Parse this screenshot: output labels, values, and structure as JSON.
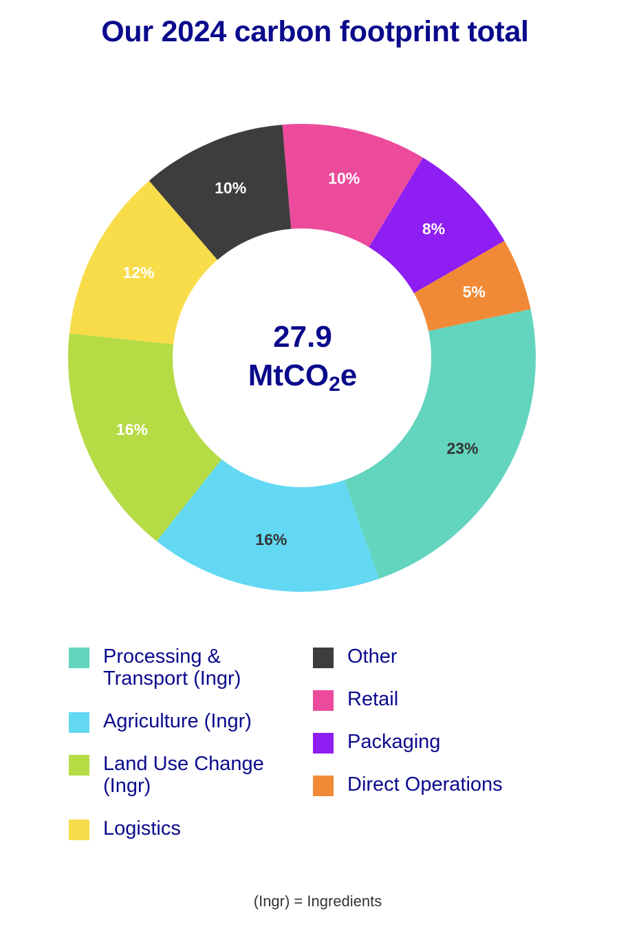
{
  "title": "Our 2024 carbon footprint total",
  "center": {
    "value": "27.9",
    "unit_prefix": "MtCO",
    "unit_sub": "2",
    "unit_suffix": "e"
  },
  "chart_data": {
    "type": "pie",
    "donut": true,
    "title": "Our 2024 carbon footprint total",
    "total": "27.9 MtCO2e",
    "slices": [
      {
        "name": "Processing & Transport (Ingr)",
        "value": 23,
        "label": "23%",
        "color": "#63d4bd",
        "label_color": "#333333"
      },
      {
        "name": "Agriculture (Ingr)",
        "value": 16,
        "label": "16%",
        "color": "#63d8f2",
        "label_color": "#333333"
      },
      {
        "name": "Land Use Change (Ingr)",
        "value": 16,
        "label": "16%",
        "color": "#b5db45",
        "label_color": "#ffffff"
      },
      {
        "name": "Logistics",
        "value": 12,
        "label": "12%",
        "color": "#f8dc4a",
        "label_color": "#ffffff"
      },
      {
        "name": "Other",
        "value": 10,
        "label": "10%",
        "color": "#3d3d3d",
        "label_color": "#ffffff"
      },
      {
        "name": "Retail",
        "value": 10,
        "label": "10%",
        "color": "#ec4b9c",
        "label_color": "#ffffff"
      },
      {
        "name": "Packaging",
        "value": 8,
        "label": "8%",
        "color": "#8e1ef2",
        "label_color": "#ffffff"
      },
      {
        "name": "Direct Operations",
        "value": 5,
        "label": "5%",
        "color": "#f08a36",
        "label_color": "#ffffff"
      }
    ],
    "legend_placement": "bottom"
  },
  "legend": {
    "left": [
      {
        "line1": "Processing &",
        "line2": "Transport (Ingr)",
        "color": "#63d4bd",
        "icon": "teal-square"
      },
      {
        "line1": "Agriculture (Ingr)",
        "line2": "",
        "color": "#63d8f2",
        "icon": "cyan-square"
      },
      {
        "line1": "Land Use Change",
        "line2": "(Ingr)",
        "color": "#b5db45",
        "icon": "lime-square"
      },
      {
        "line1": "Logistics",
        "line2": "",
        "color": "#f8dc4a",
        "icon": "yellow-square"
      }
    ],
    "right": [
      {
        "line1": "Other",
        "color": "#3d3d3d",
        "icon": "dark-gray-square"
      },
      {
        "line1": "Retail",
        "color": "#ec4b9c",
        "icon": "pink-square"
      },
      {
        "line1": "Packaging",
        "color": "#8e1ef2",
        "icon": "purple-square"
      },
      {
        "line1": "Direct Operations",
        "color": "#f08a36",
        "icon": "orange-square"
      }
    ]
  },
  "footnote": "(Ingr) = Ingredients"
}
